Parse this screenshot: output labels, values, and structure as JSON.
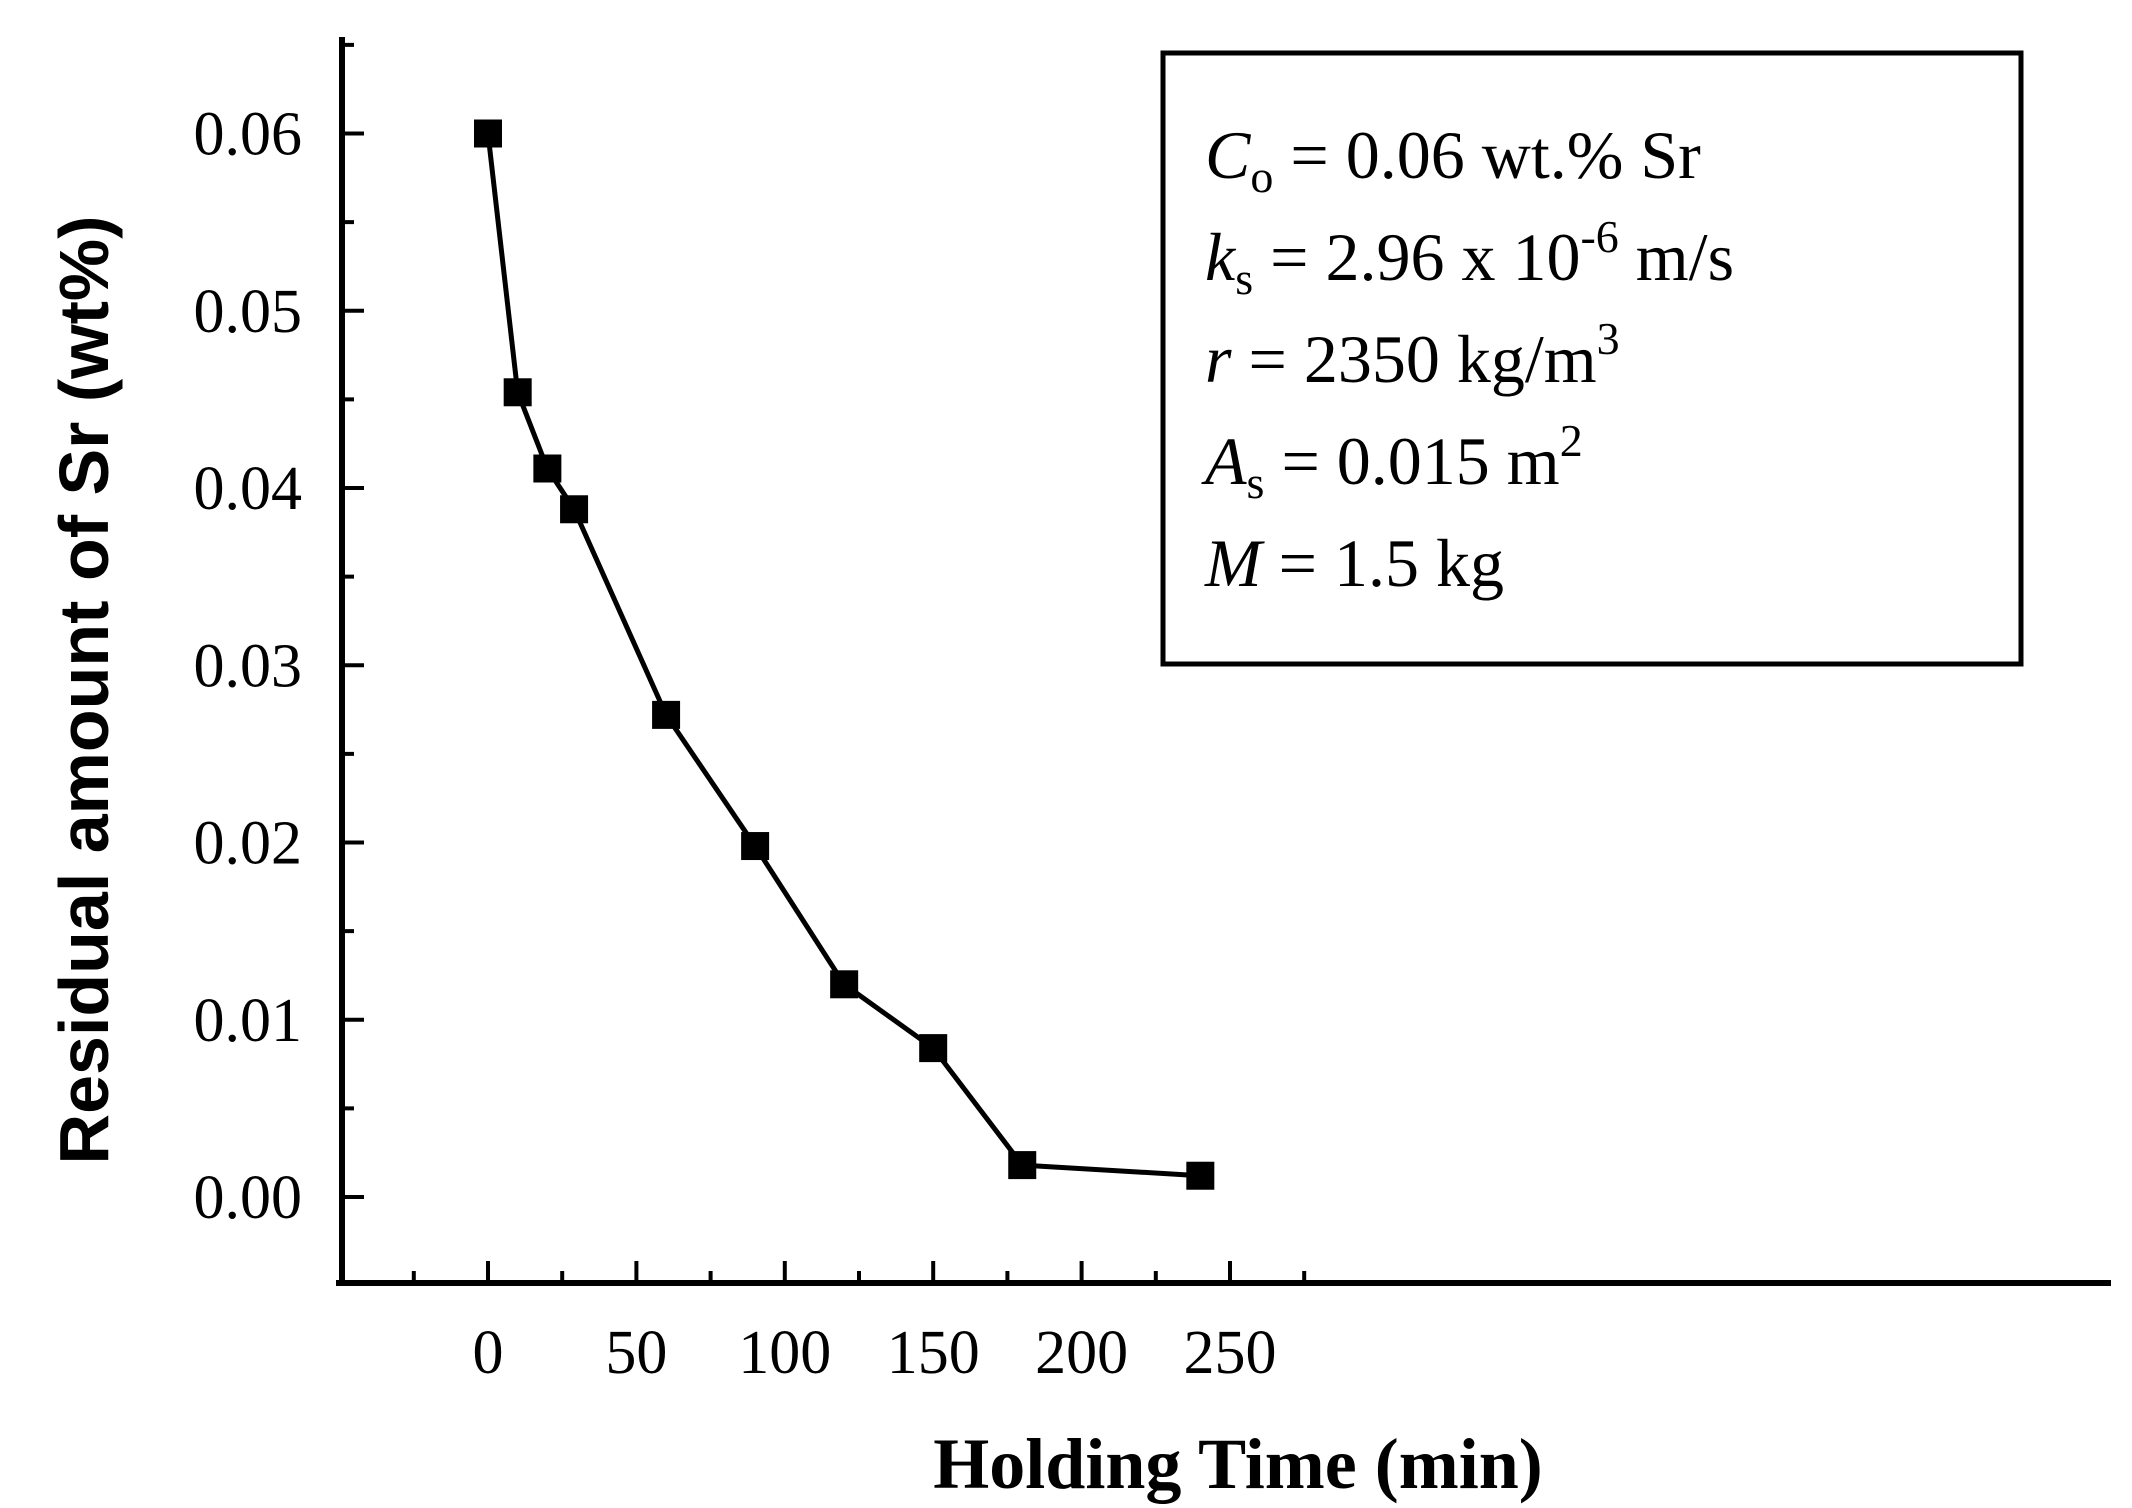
{
  "chart_data": {
    "type": "line",
    "xlabel": "Holding Time (min)",
    "ylabel": "Residual amount of Sr (wt%)",
    "xlim": [
      -25,
      275
    ],
    "ylim": [
      -0.005,
      0.066
    ],
    "x_ticks": [
      0,
      50,
      100,
      150,
      200,
      250
    ],
    "x_tick_labels": [
      "0",
      "50",
      "100",
      "150",
      "200",
      "250"
    ],
    "y_ticks": [
      0.0,
      0.01,
      0.02,
      0.03,
      0.04,
      0.05,
      0.06
    ],
    "y_tick_labels": [
      "0.00",
      "0.01",
      "0.02",
      "0.03",
      "0.04",
      "0.05",
      "0.06"
    ],
    "grid": false,
    "marker": "square",
    "series": [
      {
        "x": [
          0,
          10,
          20,
          29,
          60,
          90,
          120,
          150,
          180,
          240
        ],
        "y": [
          0.06,
          0.0454,
          0.0411,
          0.0388,
          0.0272,
          0.0198,
          0.012,
          0.0084,
          0.0018,
          0.0012
        ]
      }
    ],
    "annotation": {
      "line1": {
        "var": "C",
        "sub": "o",
        "text": " = 0.06 wt.% Sr"
      },
      "line2": {
        "var": "k",
        "sub": "s",
        "text": " = 2.96 x 10",
        "sup": "-6",
        "tail": " m/s"
      },
      "line3": {
        "var": "r",
        "text": " = 2350 kg/m",
        "sup": "3"
      },
      "line4": {
        "var": "A",
        "sub": "s",
        "text": " = 0.015 m",
        "sup": "2"
      },
      "line5": {
        "var": "M",
        "text": " = 1.5 kg"
      }
    }
  }
}
